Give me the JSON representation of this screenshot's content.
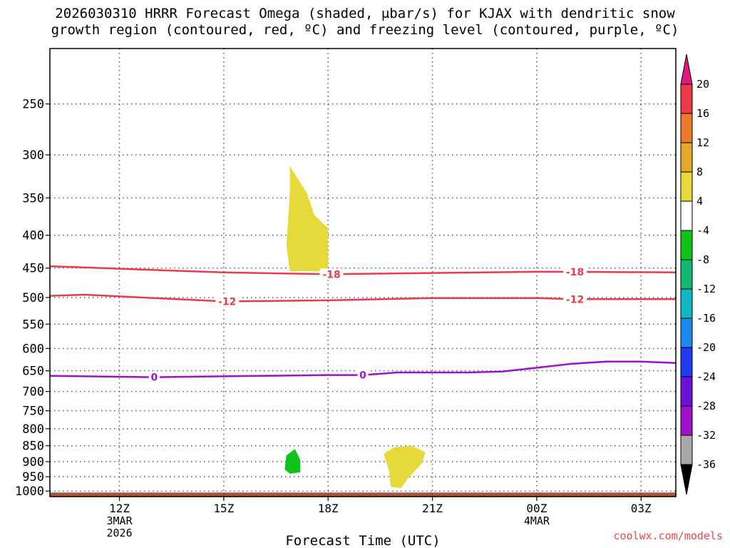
{
  "title": {
    "line1": "2026030310 HRRR Forecast Omega (shaded, μbar/s) for KJAX with dendritic snow",
    "line2": "growth region (contoured, red, ºC) and freezing level (contoured, purple, ºC)"
  },
  "credit": "coolwx.com/models",
  "chart_data": {
    "type": "heatmap",
    "title": "2026030310 HRRR Forecast Omega (shaded, μbar/s) for KJAX with dendritic snow growth region (contoured, red, ºC) and freezing level (contoured, purple, ºC)",
    "xlabel": "Forecast Time (UTC)",
    "ylabel": "",
    "x_range_hours_utc": [
      10,
      28
    ],
    "y_range_hpa": [
      1020,
      205
    ],
    "y_scale": "log-pressure",
    "grid": true,
    "x_ticks": [
      {
        "hour": 12,
        "label": "12Z",
        "sub1": "3MAR",
        "sub2": "2026"
      },
      {
        "hour": 15,
        "label": "15Z",
        "sub1": "",
        "sub2": ""
      },
      {
        "hour": 18,
        "label": "18Z",
        "sub1": "",
        "sub2": ""
      },
      {
        "hour": 21,
        "label": "21Z",
        "sub1": "",
        "sub2": ""
      },
      {
        "hour": 24,
        "label": "00Z",
        "sub1": "4MAR",
        "sub2": ""
      },
      {
        "hour": 27,
        "label": "03Z",
        "sub1": "",
        "sub2": ""
      }
    ],
    "y_ticks": [
      250,
      300,
      350,
      400,
      450,
      500,
      550,
      600,
      650,
      700,
      750,
      800,
      850,
      900,
      950,
      1000
    ],
    "colorbar": {
      "labels": [
        20,
        16,
        12,
        8,
        4,
        -4,
        -8,
        -12,
        -16,
        -20,
        -24,
        -28,
        -32,
        -36
      ],
      "colors": [
        "#ec3a49",
        "#ec7a2a",
        "#e4a82e",
        "#e6d93a",
        "#ffffff",
        "#10c21a",
        "#12b872",
        "#10b8c2",
        "#1e8af0",
        "#1f3cf0",
        "#6a12d6",
        "#a010c8",
        "#a9a9a9"
      ],
      "top_arrow_color": "#e01a80",
      "bottom_arrow_color": "#000000"
    },
    "omega_regions": [
      {
        "name": "upper-yellow",
        "color": "#e6d93a",
        "range": "4 to 8",
        "polygon": [
          [
            16.9,
            312
          ],
          [
            17.4,
            345
          ],
          [
            17.6,
            372
          ],
          [
            18.0,
            390
          ],
          [
            18.0,
            455
          ],
          [
            16.9,
            455
          ],
          [
            16.8,
            415
          ],
          [
            16.9,
            345
          ]
        ]
      },
      {
        "name": "low-green",
        "color": "#10c21a",
        "range": "-4 to -8",
        "polygon": [
          [
            16.8,
            880
          ],
          [
            17.05,
            860
          ],
          [
            17.2,
            895
          ],
          [
            17.2,
            935
          ],
          [
            16.9,
            940
          ],
          [
            16.75,
            925
          ]
        ]
      },
      {
        "name": "low-yellow",
        "color": "#e6d93a",
        "range": "4 to 8",
        "polygon": [
          [
            19.9,
            855
          ],
          [
            20.4,
            850
          ],
          [
            20.8,
            870
          ],
          [
            20.7,
            905
          ],
          [
            20.3,
            955
          ],
          [
            20.1,
            990
          ],
          [
            19.8,
            985
          ],
          [
            19.75,
            930
          ],
          [
            19.6,
            875
          ]
        ]
      }
    ],
    "contours": [
      {
        "label": "-18",
        "color": "#ec3a49",
        "kind": "dendritic",
        "points": [
          [
            10,
            447
          ],
          [
            12,
            451
          ],
          [
            15,
            457
          ],
          [
            18,
            460
          ],
          [
            21,
            458
          ],
          [
            24,
            456
          ],
          [
            25,
            456
          ],
          [
            28,
            457
          ]
        ],
        "label_hours": [
          18.1,
          25.1
        ]
      },
      {
        "label": "-12",
        "color": "#ec3a49",
        "kind": "dendritic",
        "points": [
          [
            10,
            497
          ],
          [
            11,
            495
          ],
          [
            13,
            501
          ],
          [
            15,
            507
          ],
          [
            18,
            505
          ],
          [
            21,
            501
          ],
          [
            24,
            501
          ],
          [
            25,
            503
          ],
          [
            28,
            503
          ]
        ],
        "label_hours": [
          15.1,
          25.1
        ]
      },
      {
        "label": "0",
        "color": "#a010c8",
        "kind": "freezing",
        "points": [
          [
            10,
            662
          ],
          [
            12,
            664
          ],
          [
            13,
            665
          ],
          [
            16,
            662
          ],
          [
            18,
            660
          ],
          [
            19,
            660
          ],
          [
            20,
            654
          ],
          [
            22,
            654
          ],
          [
            23,
            652
          ],
          [
            24,
            643
          ],
          [
            25,
            634
          ],
          [
            26,
            629
          ],
          [
            27,
            629
          ],
          [
            28,
            632
          ]
        ],
        "label_hours": [
          13.0,
          19.0
        ]
      }
    ],
    "surface_bar_color": "#a7553c"
  }
}
